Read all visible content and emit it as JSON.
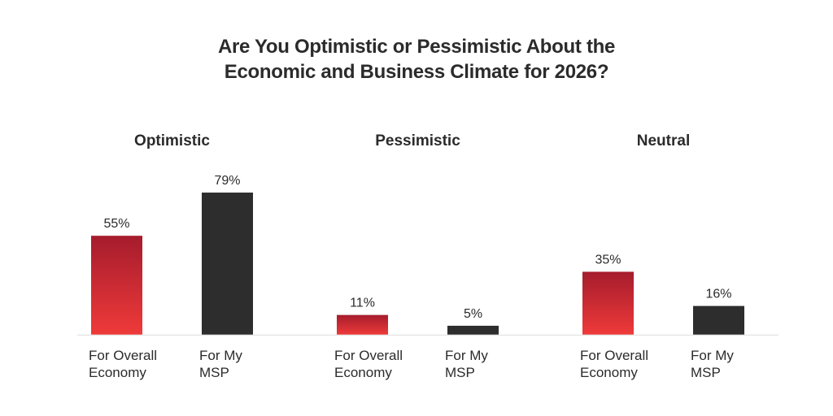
{
  "chart_data": {
    "type": "bar",
    "title_lines": [
      "Are You Optimistic or Pessimistic About the",
      "Economic and Business Climate for 2026?"
    ],
    "groups": [
      "Optimistic",
      "Pessimistic",
      "Neutral"
    ],
    "bar_labels": [
      [
        "For Overall",
        "Economy"
      ],
      [
        "For My",
        "MSP"
      ]
    ],
    "series": [
      {
        "name": "For Overall Economy",
        "values": [
          55,
          11,
          35
        ],
        "value_labels": [
          "55%",
          "11%",
          "35%"
        ],
        "color_top": "#a51c2c",
        "color_bottom": "#ef3a3a"
      },
      {
        "name": "For My MSP",
        "values": [
          79,
          5,
          16
        ],
        "value_labels": [
          "79%",
          "5%",
          "16%"
        ],
        "color": "#2e2d2e"
      }
    ],
    "ylim": [
      0,
      100
    ],
    "unit": "%",
    "grid": false,
    "baseline_color": "#e6e6e6"
  }
}
